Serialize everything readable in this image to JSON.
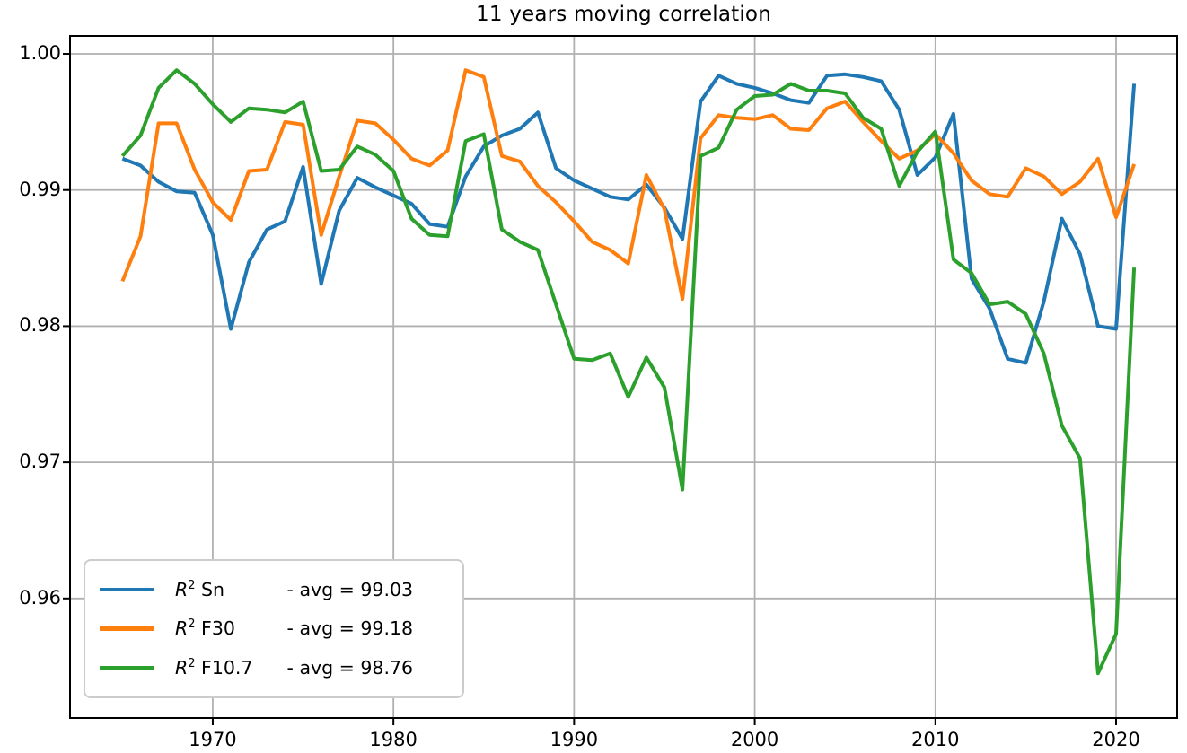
{
  "chart_data": {
    "type": "line",
    "title": "11 years moving correlation",
    "xlabel": "",
    "ylabel": "",
    "grid": true,
    "legend_position": "lower left",
    "xlim": [
      1962.1,
      2023.38
    ],
    "ylim": [
      0.95122,
      1.00132
    ],
    "xticks": [
      1970,
      1980,
      1990,
      2000,
      2010,
      2020
    ],
    "xtick_labels": [
      "1970",
      "1980",
      "1990",
      "2000",
      "2010",
      "2020"
    ],
    "ytick_values": [
      1.0,
      0.99,
      0.98,
      0.97,
      0.96
    ],
    "ytick_labels": [
      "1.00",
      "0.99",
      "0.98",
      "0.97",
      "0.96"
    ],
    "x": [
      1965,
      1966,
      1967,
      1968,
      1969,
      1970,
      1971,
      1972,
      1973,
      1974,
      1975,
      1976,
      1977,
      1978,
      1979,
      1980,
      1981,
      1982,
      1983,
      1984,
      1985,
      1986,
      1987,
      1988,
      1989,
      1990,
      1991,
      1992,
      1993,
      1994,
      1995,
      1996,
      1997,
      1998,
      1999,
      2000,
      2001,
      2002,
      2003,
      2004,
      2005,
      2006,
      2007,
      2008,
      2009,
      2010,
      2011,
      2012,
      2013,
      2014,
      2015,
      2016,
      2017,
      2018,
      2019,
      2020,
      2021
    ],
    "series": [
      {
        "name": "R2 Sn",
        "legend": {
          "prefix": "R",
          "sup": "2",
          "name": "Sn",
          "avg": "- avg = 99.03"
        },
        "color": "#1f77b4",
        "values": [
          0.9923,
          0.9918,
          0.9906,
          0.9899,
          0.9898,
          0.9867,
          0.9798,
          0.9847,
          0.9871,
          0.9877,
          0.9917,
          0.9831,
          0.9885,
          0.9909,
          0.9902,
          0.9896,
          0.989,
          0.9875,
          0.9873,
          0.991,
          0.9932,
          0.994,
          0.9945,
          0.9957,
          0.9916,
          0.9907,
          0.9901,
          0.9895,
          0.9893,
          0.9904,
          0.9887,
          0.9864,
          0.9965,
          0.9984,
          0.9978,
          0.9975,
          0.9971,
          0.9966,
          0.9964,
          0.9984,
          0.9985,
          0.9983,
          0.998,
          0.9959,
          0.9911,
          0.9924,
          0.9956,
          0.9835,
          0.9813,
          0.9776,
          0.9773,
          0.9818,
          0.9879,
          0.9853,
          0.98,
          0.9798,
          0.9978
        ]
      },
      {
        "name": "R2 F30",
        "legend": {
          "prefix": "R",
          "sup": "2",
          "name": "F30",
          "avg": "- avg = 99.18"
        },
        "color": "#ff7f0e",
        "values": [
          0.9833,
          0.9866,
          0.9949,
          0.9949,
          0.9915,
          0.9891,
          0.9878,
          0.9914,
          0.9915,
          0.995,
          0.9948,
          0.9867,
          0.991,
          0.9951,
          0.9949,
          0.9937,
          0.9923,
          0.9918,
          0.9929,
          0.9988,
          0.9983,
          0.9925,
          0.9921,
          0.9903,
          0.9891,
          0.9877,
          0.9862,
          0.9856,
          0.9846,
          0.9911,
          0.9886,
          0.982,
          0.9938,
          0.9955,
          0.9953,
          0.9952,
          0.9955,
          0.9945,
          0.9944,
          0.996,
          0.9965,
          0.995,
          0.9936,
          0.9923,
          0.9929,
          0.9941,
          0.9927,
          0.9907,
          0.9897,
          0.9895,
          0.9916,
          0.991,
          0.9897,
          0.9906,
          0.9923,
          0.988,
          0.9919
        ]
      },
      {
        "name": "R2 F10.7",
        "legend": {
          "prefix": "R",
          "sup": "2",
          "name": "F10.7",
          "avg": "- avg = 98.76"
        },
        "color": "#2ca02c",
        "values": [
          0.9925,
          0.994,
          0.9975,
          0.9988,
          0.9978,
          0.9963,
          0.995,
          0.996,
          0.9959,
          0.9957,
          0.9965,
          0.9914,
          0.9915,
          0.9932,
          0.9926,
          0.9914,
          0.9879,
          0.9867,
          0.9866,
          0.9936,
          0.9941,
          0.9871,
          0.9862,
          0.9856,
          0.9816,
          0.9776,
          0.9775,
          0.978,
          0.9748,
          0.9777,
          0.9755,
          0.968,
          0.9925,
          0.9931,
          0.9959,
          0.9969,
          0.997,
          0.9978,
          0.9973,
          0.9973,
          0.9971,
          0.9953,
          0.9945,
          0.9903,
          0.9928,
          0.9943,
          0.9849,
          0.9839,
          0.9816,
          0.9818,
          0.9809,
          0.978,
          0.9727,
          0.9703,
          0.9545,
          0.9574,
          0.9843
        ]
      }
    ],
    "style": {
      "grid_color": "#b0b0b0",
      "spine_color": "#000000",
      "background": "#ffffff",
      "line_width": 4
    }
  }
}
